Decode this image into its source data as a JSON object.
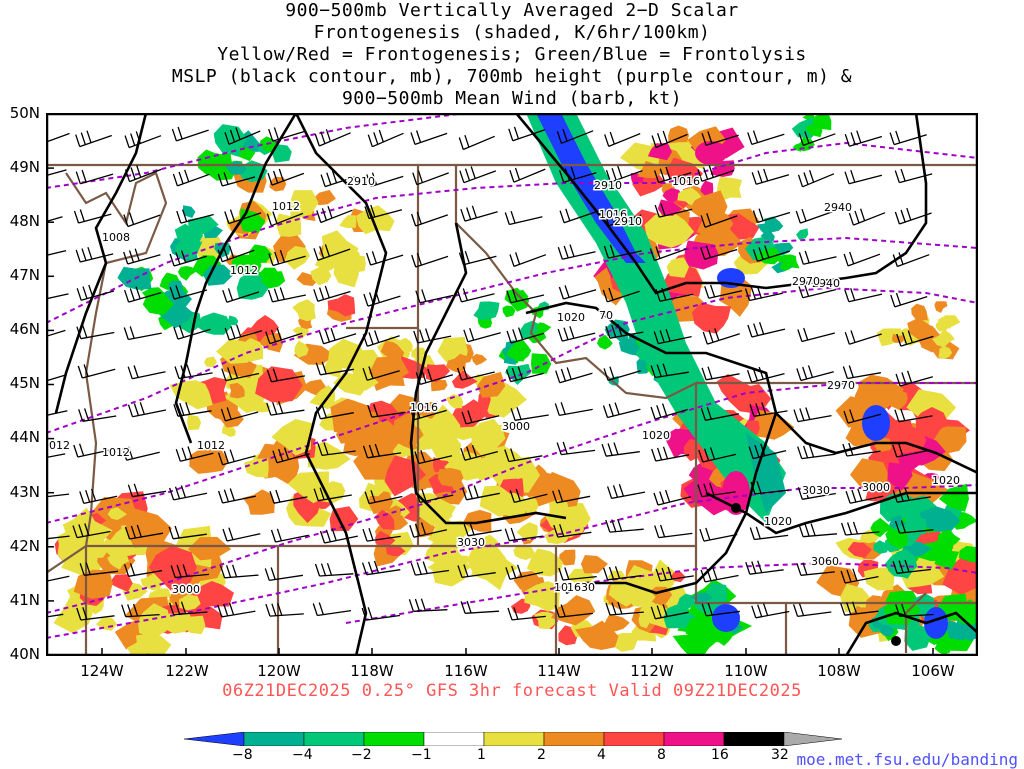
{
  "title": {
    "line1": "900−500mb Vertically Averaged 2−D Scalar",
    "line2": "Frontogenesis (shaded, K/6hr/100km)",
    "line3": "Yellow/Red = Frontogenesis;  Green/Blue = Frontolysis",
    "line4": "MSLP (black contour, mb), 700mb height (purple contour, m) &",
    "line5": "900−500mb Mean Wind (barb, kt)"
  },
  "axes": {
    "lat_labels": [
      "50N",
      "49N",
      "48N",
      "47N",
      "46N",
      "45N",
      "44N",
      "43N",
      "42N",
      "41N",
      "40N"
    ],
    "lon_labels": [
      "124W",
      "122W",
      "120W",
      "118W",
      "116W",
      "114W",
      "112W",
      "110W",
      "108W",
      "106W"
    ]
  },
  "valid_text": "06Z21DEC2025 0.25° GFS 3hr forecast Valid 09Z21DEC2025",
  "colorbar": {
    "labels": [
      "−8",
      "−4",
      "−2",
      "−1",
      "1",
      "2",
      "4",
      "8",
      "16",
      "32"
    ],
    "colors": [
      "#1f3fff",
      "#00b090",
      "#00c878",
      "#00dd00",
      "#ffffff",
      "#e8e040",
      "#ee8a22",
      "#ff4444",
      "#ee1188",
      "#000000",
      "#aaaaaa"
    ]
  },
  "credit": "moe.met.fsu.edu/banding",
  "contour_labels": {
    "mslp": [
      "1008",
      "1012",
      "1012",
      "1012",
      "1012",
      "1012",
      "1016",
      "1016",
      "1016",
      "1020",
      "1020",
      "1020",
      "1020",
      "1016"
    ],
    "height": [
      "2910",
      "2910",
      "2910",
      "2940",
      "2940",
      "2970",
      "2970",
      "3000",
      "3000",
      "3000",
      "3030",
      "3030",
      "3060",
      "1630",
      "70"
    ]
  },
  "map_colors": {
    "mslp": "#000000",
    "height": "#a000c8",
    "borders": "#7a5a45",
    "barbs": "#000000"
  }
}
